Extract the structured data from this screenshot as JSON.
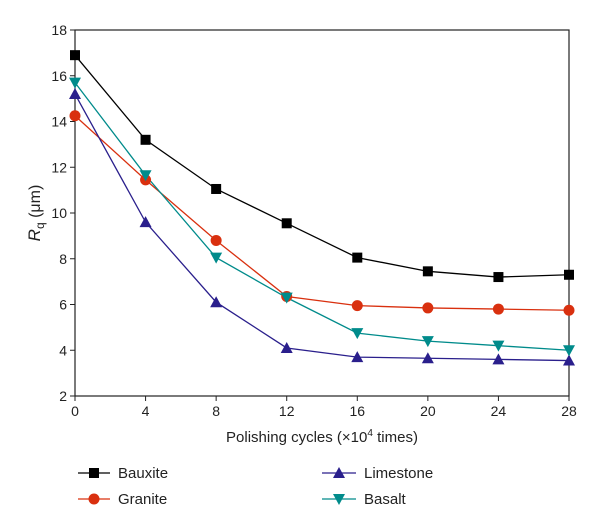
{
  "chart_data": {
    "type": "line",
    "title": "",
    "xlabel": "Polishing cycles (×10⁴ times)",
    "ylabel": "Rq (μm)",
    "ylabel_main": "R",
    "ylabel_sub": "q",
    "ylabel_unit": " (μm)",
    "xlabel_main": "Polishing cycles (×10",
    "xlabel_sup": "4",
    "xlabel_end": " times)",
    "x": [
      0,
      4,
      8,
      12,
      16,
      20,
      24,
      28
    ],
    "xlim": [
      0,
      28
    ],
    "ylim": [
      2,
      18
    ],
    "xticks": [
      0,
      4,
      8,
      12,
      16,
      20,
      24,
      28
    ],
    "yticks": [
      2,
      4,
      6,
      8,
      10,
      12,
      14,
      16,
      18
    ],
    "grid": false,
    "legend_placement": "bottom",
    "series": [
      {
        "name": "Bauxite",
        "marker": "square",
        "color": "#000000",
        "values": [
          16.9,
          13.2,
          11.05,
          9.55,
          8.05,
          7.45,
          7.2,
          7.3
        ]
      },
      {
        "name": "Granite",
        "marker": "circle",
        "color": "#d9300f",
        "values": [
          14.25,
          11.45,
          8.8,
          6.35,
          5.95,
          5.85,
          5.8,
          5.75
        ]
      },
      {
        "name": "Limestone",
        "marker": "triangle-up",
        "color": "#2a1f8c",
        "values": [
          15.2,
          9.6,
          6.1,
          4.1,
          3.7,
          3.65,
          3.6,
          3.55
        ]
      },
      {
        "name": "Basalt",
        "marker": "triangle-down",
        "color": "#008b8b",
        "values": [
          15.7,
          11.65,
          8.05,
          6.3,
          4.75,
          4.4,
          4.2,
          4.0
        ]
      }
    ]
  }
}
